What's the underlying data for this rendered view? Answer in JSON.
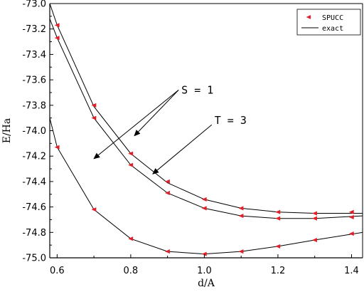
{
  "chart_data": {
    "type": "line",
    "title": "",
    "xlabel": "d/A",
    "ylabel": "E/Ha",
    "xlim": [
      0.58,
      1.43
    ],
    "ylim": [
      -75.0,
      -73.0
    ],
    "xticks": [
      0.6,
      0.8,
      1.0,
      1.2,
      1.4
    ],
    "xtick_labels": [
      "0.6",
      "0.8",
      "1.0",
      "1.2",
      "1.4"
    ],
    "yticks": [
      -73.0,
      -73.2,
      -73.4,
      -73.6,
      -73.8,
      -74.0,
      -74.2,
      -74.4,
      -74.6,
      -74.8,
      -75.0
    ],
    "ytick_labels": [
      "-73.0",
      "-73.2",
      "-73.4",
      "-73.6",
      "-73.8",
      "-74.0",
      "-74.2",
      "-74.4",
      "-74.6",
      "-74.8",
      "-75.0"
    ],
    "legend": {
      "position": "top-right",
      "markers_label": "SPUCC",
      "line_label": "exact"
    },
    "series": [
      {
        "exact_x": [
          0.58,
          0.6,
          0.7,
          0.8,
          0.9,
          1.0,
          1.1,
          1.2,
          1.3,
          1.43
        ],
        "exact_y": [
          -73.0,
          -73.17,
          -73.81,
          -74.18,
          -74.41,
          -74.54,
          -74.61,
          -74.64,
          -74.65,
          -74.65
        ],
        "spucc_x": [
          0.6,
          0.7,
          0.8,
          0.9,
          1.0,
          1.1,
          1.2,
          1.3,
          1.4
        ],
        "spucc_y": [
          -73.17,
          -73.8,
          -74.18,
          -74.4,
          -74.54,
          -74.61,
          -74.64,
          -74.65,
          -74.64
        ]
      },
      {
        "exact_x": [
          0.58,
          0.6,
          0.7,
          0.8,
          0.9,
          1.0,
          1.1,
          1.2,
          1.3,
          1.43
        ],
        "exact_y": [
          -73.12,
          -73.27,
          -73.9,
          -74.27,
          -74.49,
          -74.61,
          -74.67,
          -74.69,
          -74.69,
          -74.67
        ],
        "spucc_x": [
          0.6,
          0.7,
          0.8,
          0.9,
          1.0,
          1.1,
          1.2,
          1.3,
          1.4
        ],
        "spucc_y": [
          -73.27,
          -73.9,
          -74.27,
          -74.49,
          -74.61,
          -74.67,
          -74.69,
          -74.69,
          -74.68
        ]
      },
      {
        "exact_x": [
          0.58,
          0.6,
          0.7,
          0.8,
          0.9,
          1.0,
          1.1,
          1.2,
          1.3,
          1.43
        ],
        "exact_y": [
          -73.9,
          -74.13,
          -74.62,
          -74.85,
          -74.95,
          -74.97,
          -74.95,
          -74.91,
          -74.86,
          -74.8
        ],
        "spucc_x": [
          0.6,
          0.7,
          0.8,
          0.9,
          1.0,
          1.1,
          1.2,
          1.3,
          1.4
        ],
        "spucc_y": [
          -74.13,
          -74.62,
          -74.85,
          -74.95,
          -74.97,
          -74.95,
          -74.91,
          -74.86,
          -74.81
        ]
      }
    ],
    "annotations": [
      {
        "text": "S = 1",
        "anchor": [
          0.93,
          -73.68
        ],
        "arrows_to": [
          [
            0.81,
            -74.04
          ],
          [
            0.7,
            -74.22
          ]
        ]
      },
      {
        "text": "T = 3",
        "anchor": [
          1.02,
          -73.92
        ],
        "arrows_to": [
          [
            0.86,
            -74.34
          ]
        ]
      }
    ],
    "colors": {
      "line": "#000000",
      "marker": "#e21f26",
      "axis": "#000000"
    }
  }
}
